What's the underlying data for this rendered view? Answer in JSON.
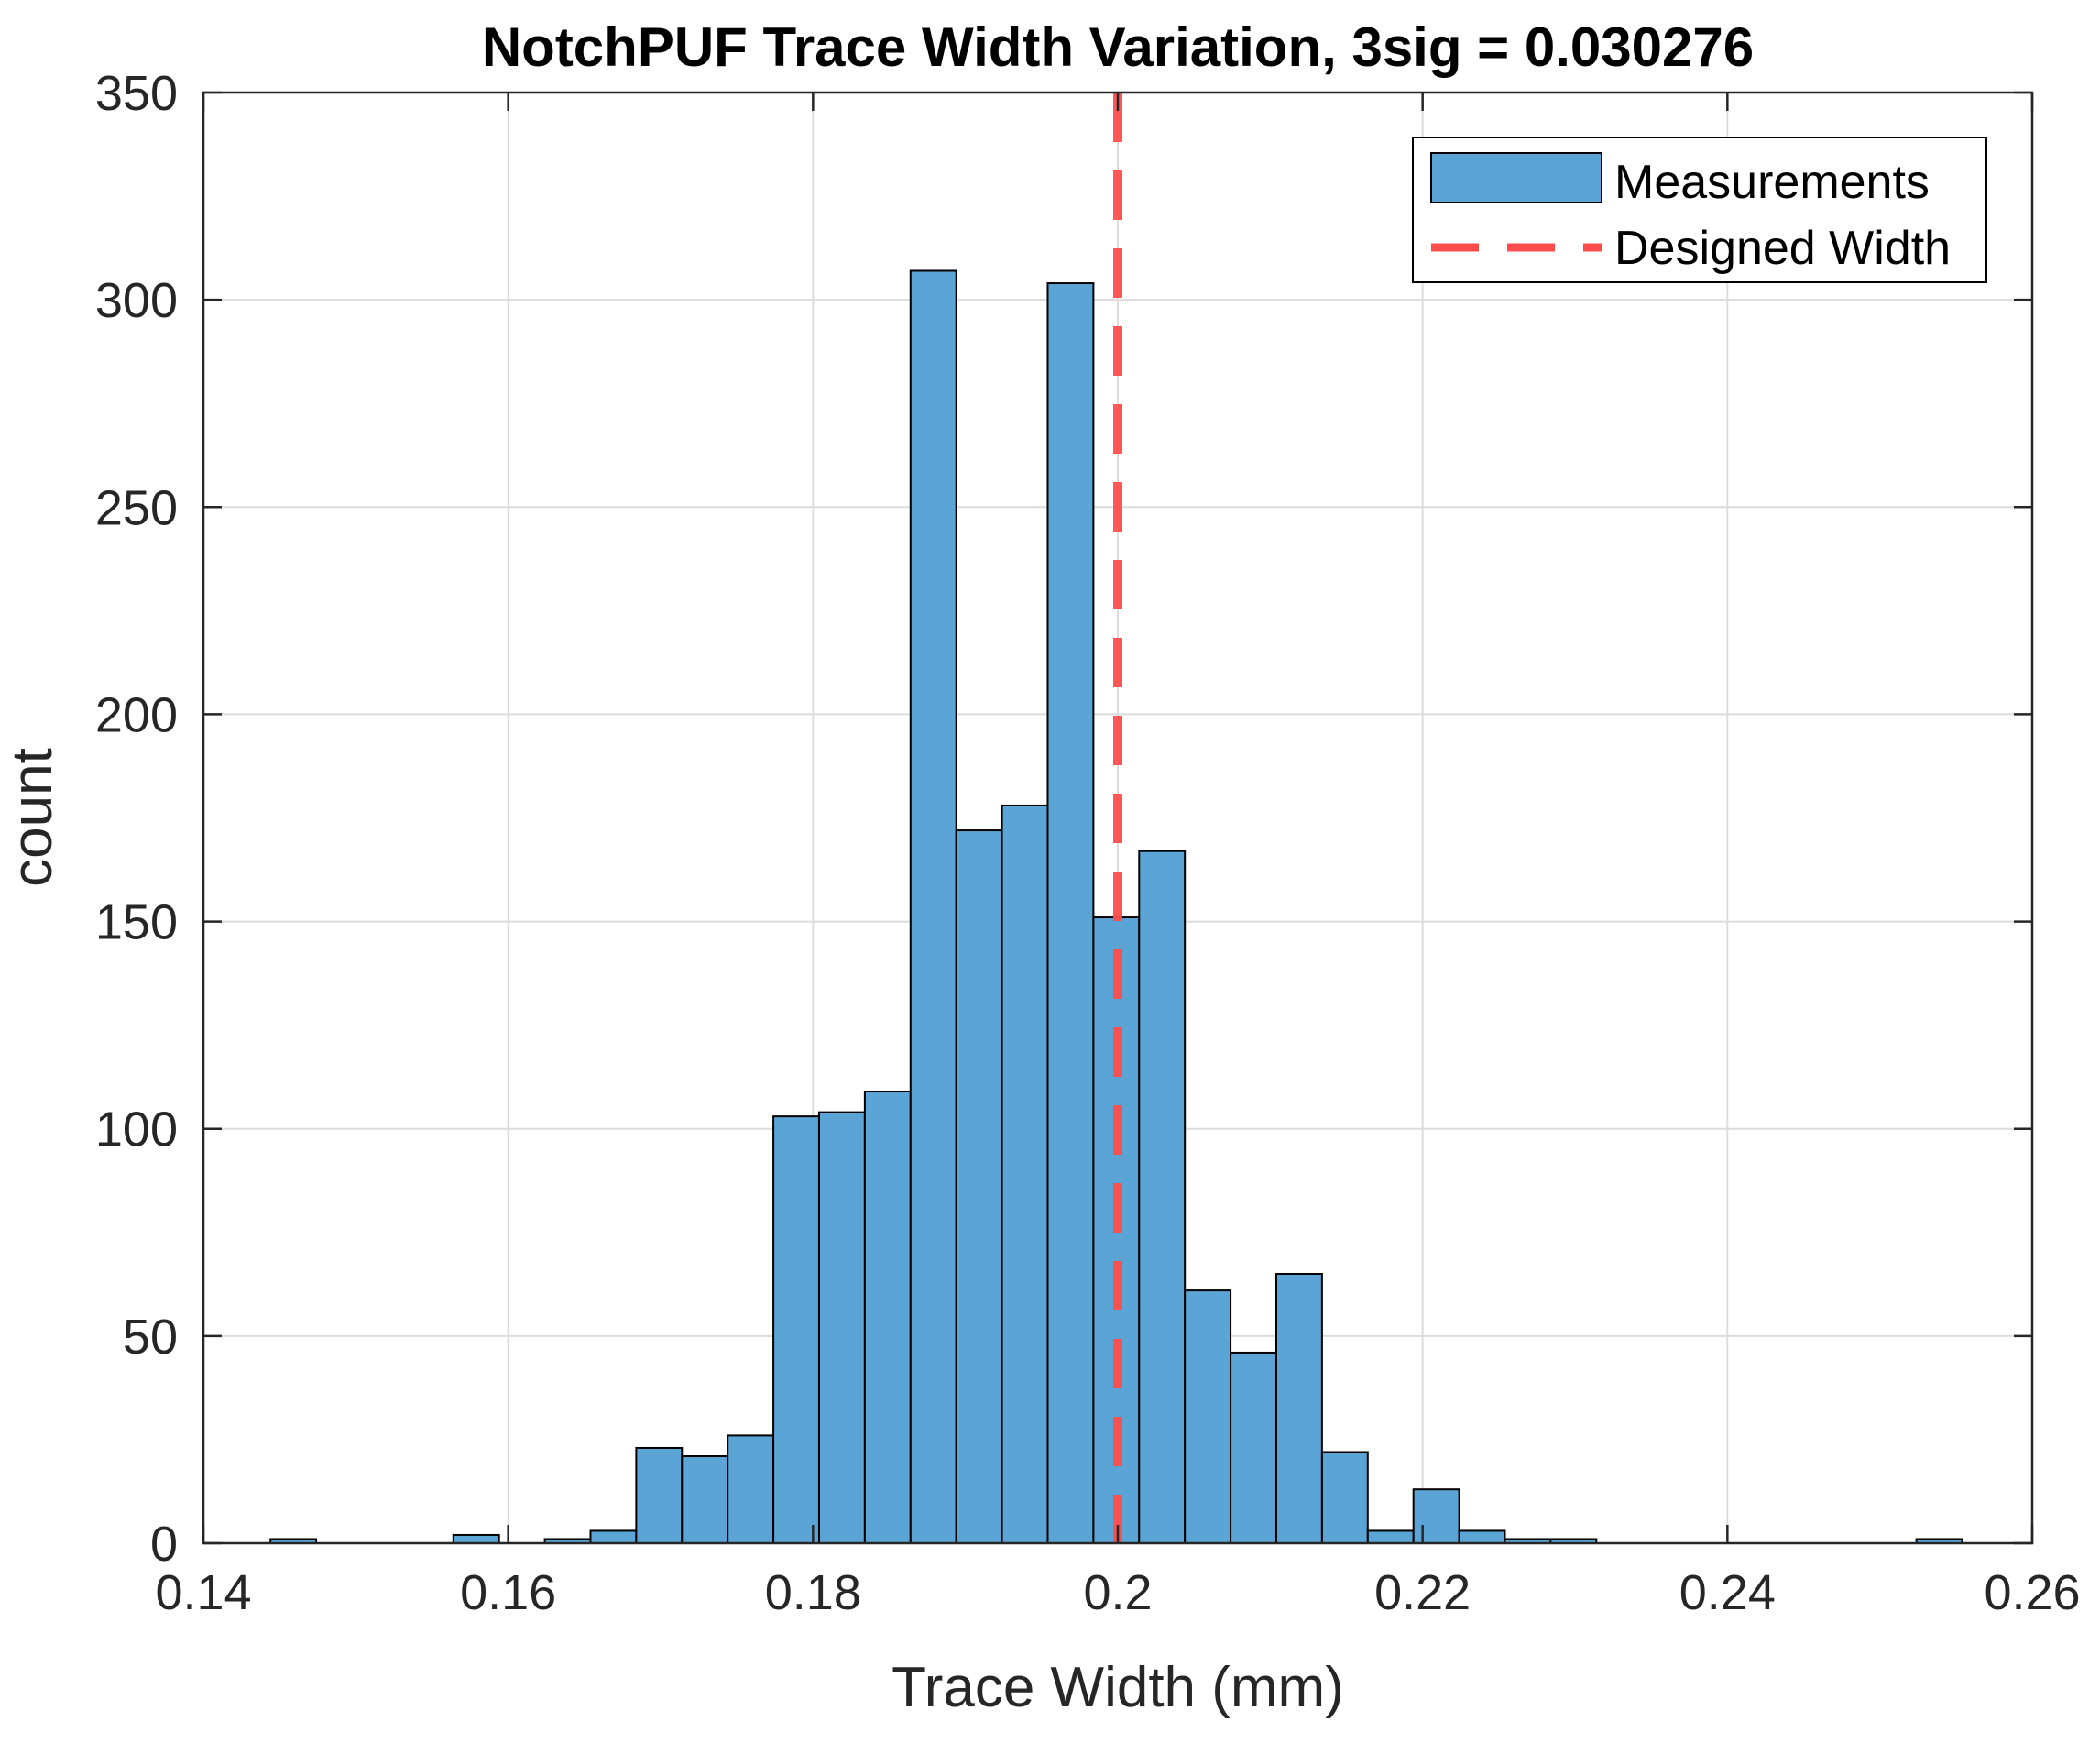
{
  "chart_data": {
    "type": "bar",
    "title": "NotchPUF Trace Width Variation, 3sig = 0.030276",
    "xlabel": "Trace Width (mm)",
    "ylabel": "count",
    "xlim": [
      0.14,
      0.26
    ],
    "ylim": [
      0,
      350
    ],
    "xticks": [
      "0.14",
      "0.16",
      "0.18",
      "0.2",
      "0.22",
      "0.24",
      "0.26"
    ],
    "xtick_values": [
      0.14,
      0.16,
      0.18,
      0.2,
      0.22,
      0.24,
      0.26
    ],
    "yticks": [
      "0",
      "50",
      "100",
      "150",
      "200",
      "250",
      "300",
      "350"
    ],
    "ytick_values": [
      0,
      50,
      100,
      150,
      200,
      250,
      300,
      350
    ],
    "grid": true,
    "bin_width": 0.003,
    "series": [
      {
        "name": "Measurements",
        "kind": "histogram",
        "color": "#5aa5d6",
        "edge_color": "#000000",
        "bin_edges": [
          0.1444,
          0.1474,
          0.1504,
          0.1534,
          0.1564,
          0.1594,
          0.1624,
          0.1654,
          0.1684,
          0.1714,
          0.1744,
          0.1774,
          0.1804,
          0.1834,
          0.1864,
          0.1894,
          0.1924,
          0.1954,
          0.1984,
          0.2014,
          0.2044,
          0.2074,
          0.2104,
          0.2134,
          0.2164,
          0.2194,
          0.2224,
          0.2254,
          0.2284,
          0.2314,
          0.2344,
          0.2374,
          0.2404,
          0.2434,
          0.2464,
          0.2494,
          0.2524,
          0.2554
        ],
        "counts": [
          1,
          0,
          0,
          0,
          2,
          0,
          1,
          3,
          23,
          21,
          26,
          103,
          104,
          109,
          307,
          172,
          178,
          304,
          151,
          167,
          61,
          46,
          65,
          22,
          3,
          13,
          3,
          1,
          1,
          0,
          0,
          0,
          0,
          0,
          0,
          0,
          1
        ]
      },
      {
        "name": "Designed Width",
        "kind": "vline",
        "x": 0.2,
        "color": "#ff4d4d",
        "style": "dashed"
      }
    ],
    "legend": {
      "position": "top-right",
      "entries": [
        "Measurements",
        "Designed Width"
      ]
    }
  }
}
